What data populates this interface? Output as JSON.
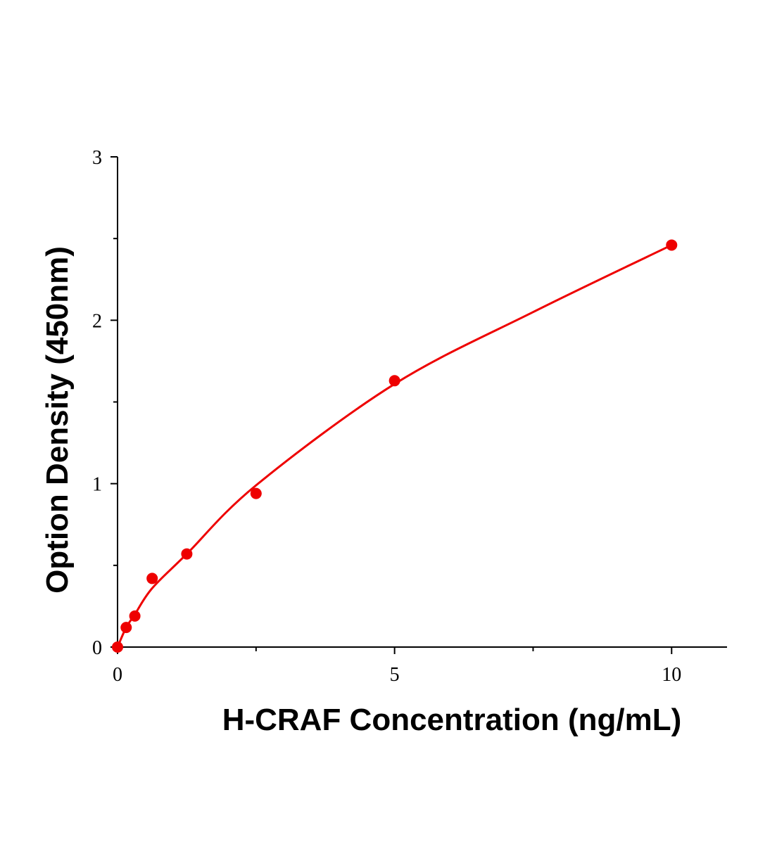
{
  "chart_data": {
    "type": "scatter",
    "x_label": "H-CRAF Concentration (ng/mL)",
    "y_label": "Option Density (450nm)",
    "xlim": [
      0,
      11
    ],
    "ylim": [
      0,
      3
    ],
    "xticks": [
      0,
      5,
      10
    ],
    "yticks": [
      0,
      1,
      2,
      3
    ],
    "xminor": [
      2.5,
      7.5
    ],
    "yminor": [
      0.5,
      1.5,
      2.5
    ],
    "grid": false,
    "series": [
      {
        "color": "#ee0000",
        "x": [
          0,
          0.156,
          0.3125,
          0.625,
          1.25,
          2.5,
          5,
          10
        ],
        "values": [
          0,
          0.12,
          0.19,
          0.42,
          0.57,
          0.94,
          1.63,
          2.46
        ]
      }
    ],
    "fit": {
      "color": "#ee0000",
      "x": [
        0,
        0.156,
        0.3125,
        0.625,
        1.25,
        2.5,
        5,
        7.5,
        10
      ],
      "values": [
        0,
        0.12,
        0.2,
        0.36,
        0.57,
        0.99,
        1.61,
        2.05,
        2.46
      ]
    }
  }
}
